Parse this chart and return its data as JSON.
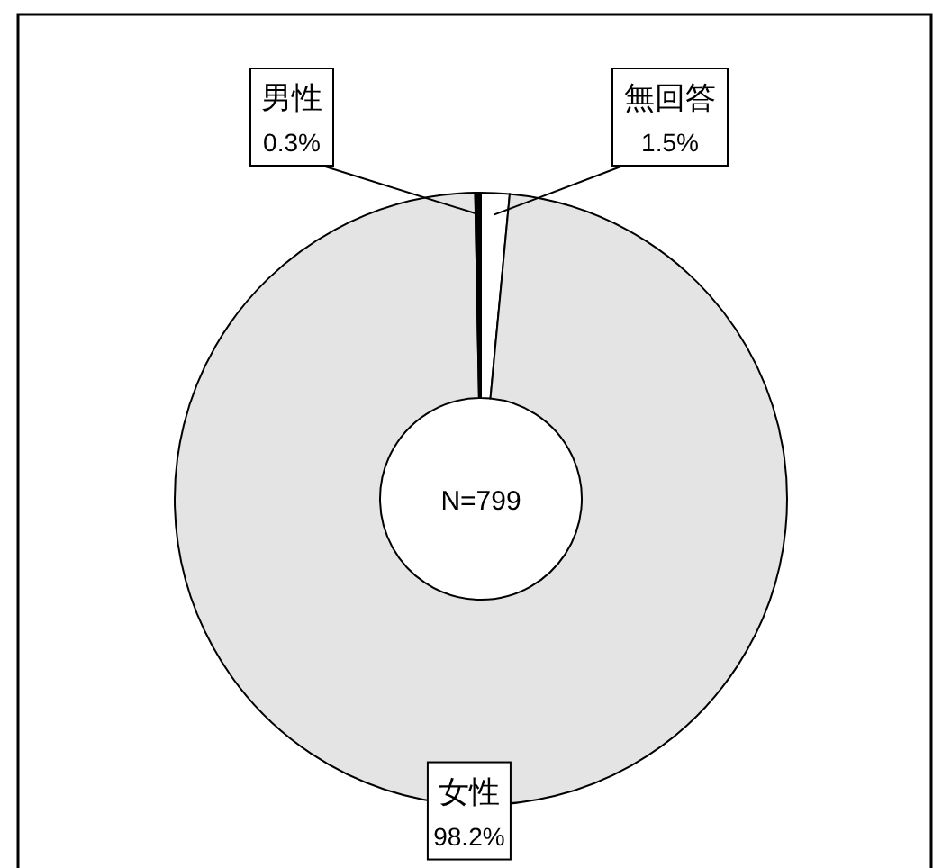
{
  "chart_data": {
    "type": "donut",
    "categories": [
      "無回答",
      "女性",
      "男性"
    ],
    "values": [
      1.5,
      98.2,
      0.3
    ],
    "colors": [
      "#ffffff",
      "#e4e4e4",
      "#000000"
    ],
    "value_labels": [
      "1.5%",
      "98.2%",
      "0.3%"
    ],
    "annotations": [
      "N=799"
    ]
  }
}
